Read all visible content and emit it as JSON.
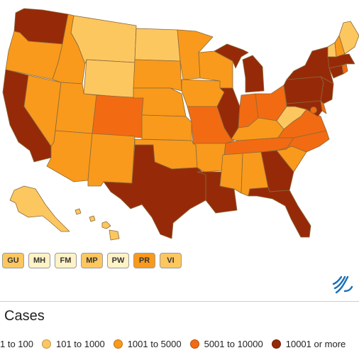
{
  "colors": {
    "level1": "#fff2c6",
    "level2": "#fdc760",
    "level3": "#f99a1c",
    "level4": "#f26b12",
    "level5": "#962a08",
    "border": "#8a6a3a"
  },
  "states": [
    {
      "id": "WA",
      "level": 5
    },
    {
      "id": "OR",
      "level": 3
    },
    {
      "id": "CA",
      "level": 5
    },
    {
      "id": "NV",
      "level": 3
    },
    {
      "id": "ID",
      "level": 3
    },
    {
      "id": "MT",
      "level": 2
    },
    {
      "id": "WY",
      "level": 2
    },
    {
      "id": "UT",
      "level": 3
    },
    {
      "id": "AZ",
      "level": 3
    },
    {
      "id": "CO",
      "level": 4
    },
    {
      "id": "NM",
      "level": 3
    },
    {
      "id": "ND",
      "level": 2
    },
    {
      "id": "SD",
      "level": 3
    },
    {
      "id": "NE",
      "level": 3
    },
    {
      "id": "KS",
      "level": 3
    },
    {
      "id": "OK",
      "level": 3
    },
    {
      "id": "TX",
      "level": 5
    },
    {
      "id": "MN",
      "level": 3
    },
    {
      "id": "IA",
      "level": 3
    },
    {
      "id": "MO",
      "level": 4
    },
    {
      "id": "AR",
      "level": 3
    },
    {
      "id": "LA",
      "level": 5
    },
    {
      "id": "WI",
      "level": 3
    },
    {
      "id": "IL",
      "level": 5
    },
    {
      "id": "MI",
      "level": 5
    },
    {
      "id": "IN",
      "level": 4
    },
    {
      "id": "OH",
      "level": 4
    },
    {
      "id": "KY",
      "level": 3
    },
    {
      "id": "TN",
      "level": 4
    },
    {
      "id": "MS",
      "level": 3
    },
    {
      "id": "AL",
      "level": 3
    },
    {
      "id": "GA",
      "level": 5
    },
    {
      "id": "FL",
      "level": 5
    },
    {
      "id": "SC",
      "level": 3
    },
    {
      "id": "NC",
      "level": 4
    },
    {
      "id": "VA",
      "level": 4
    },
    {
      "id": "WV",
      "level": 2
    },
    {
      "id": "PA",
      "level": 5
    },
    {
      "id": "NY",
      "level": 5
    },
    {
      "id": "NJ",
      "level": 5
    },
    {
      "id": "MD",
      "level": 5
    },
    {
      "id": "DE",
      "level": 4
    },
    {
      "id": "DC",
      "level": 4
    },
    {
      "id": "CT",
      "level": 5
    },
    {
      "id": "RI",
      "level": 4
    },
    {
      "id": "MA",
      "level": 5
    },
    {
      "id": "VT",
      "level": 2
    },
    {
      "id": "NH",
      "level": 3
    },
    {
      "id": "ME",
      "level": 2
    },
    {
      "id": "AK",
      "level": 2
    },
    {
      "id": "HI",
      "level": 2
    }
  ],
  "territories": [
    {
      "id": "GU",
      "label": "GU",
      "level": 2
    },
    {
      "id": "MH",
      "label": "MH",
      "level": 1
    },
    {
      "id": "FM",
      "label": "FM",
      "level": 1
    },
    {
      "id": "MP",
      "label": "MP",
      "level": 2
    },
    {
      "id": "PW",
      "label": "PW",
      "level": 1
    },
    {
      "id": "PR",
      "label": "PR",
      "level": 3
    },
    {
      "id": "VI",
      "label": "VI",
      "level": 2
    }
  ],
  "legend": {
    "title": "Cases",
    "items": [
      {
        "label": "1 to 100",
        "level": 1
      },
      {
        "label": "101 to 1000",
        "level": 2
      },
      {
        "label": "1001 to 5000",
        "level": 3
      },
      {
        "label": "5001 to 10000",
        "level": 4
      },
      {
        "label": "10001 or more",
        "level": 5
      }
    ]
  },
  "logo": {
    "icon": "hhs-eagle-icon"
  }
}
